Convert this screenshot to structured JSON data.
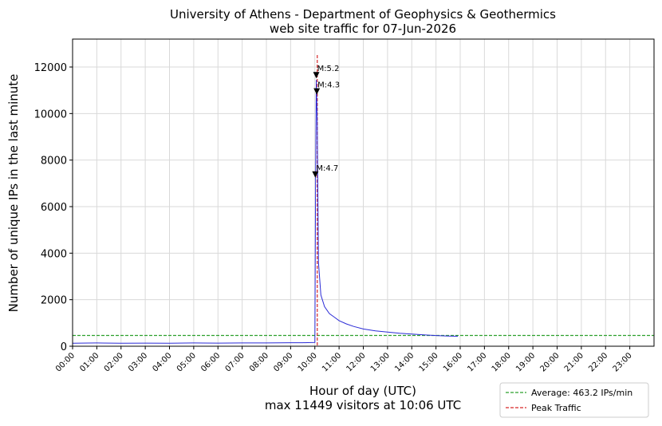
{
  "chart_data": {
    "type": "line",
    "title": "University of Athens - Department of Geophysics & Geothermics",
    "subtitle": "web site traffic for 07-Jun-2026",
    "xlabel": "Hour of day (UTC)",
    "xlabel2": "max 11449 visitors at 10:06 UTC",
    "ylabel": "Number of unique IPs in the last minute",
    "xlim": [
      0,
      24
    ],
    "ylim": [
      0,
      13200
    ],
    "grid": true,
    "legend_position": "bottom-right",
    "x_ticks": [
      "00:00",
      "01:00",
      "02:00",
      "03:00",
      "04:00",
      "05:00",
      "06:00",
      "07:00",
      "08:00",
      "09:00",
      "10:00",
      "11:00",
      "12:00",
      "13:00",
      "14:00",
      "15:00",
      "16:00",
      "17:00",
      "18:00",
      "19:00",
      "20:00",
      "21:00",
      "22:00",
      "23:00"
    ],
    "y_ticks": [
      "0",
      "2000",
      "4000",
      "6000",
      "8000",
      "10000",
      "12000"
    ],
    "y_tick_values": [
      0,
      2000,
      4000,
      6000,
      8000,
      10000,
      12000
    ],
    "series": [
      {
        "color": "#2b2bd6",
        "x": [
          0,
          1,
          2,
          3,
          4,
          5,
          6,
          7,
          8,
          9,
          9.5,
          10.0,
          10.03,
          10.06,
          10.1,
          10.15,
          10.25,
          10.4,
          10.6,
          10.8,
          11.0,
          11.3,
          11.6,
          12.0,
          12.5,
          13.0,
          13.5,
          14.0,
          14.5,
          15.0,
          15.5,
          15.9
        ],
        "y": [
          130,
          140,
          130,
          135,
          130,
          140,
          135,
          140,
          140,
          150,
          150,
          160,
          7300,
          11449,
          9500,
          3600,
          2200,
          1700,
          1400,
          1250,
          1100,
          960,
          850,
          740,
          660,
          610,
          560,
          520,
          490,
          460,
          440,
          430
        ]
      }
    ],
    "average": {
      "label": "Average: 463.2 IPs/min",
      "value": 463.2,
      "color": "#2ca02c"
    },
    "peak": {
      "label": "Peak Traffic",
      "x": 10.1,
      "color": "#d62728"
    },
    "annotations": [
      {
        "text": "M:5.2",
        "x": 10.06,
        "y": 11650
      },
      {
        "text": "M:4.3",
        "x": 10.08,
        "y": 10950
      },
      {
        "text": "M:4.7",
        "x": 10.02,
        "y": 7380
      }
    ]
  }
}
